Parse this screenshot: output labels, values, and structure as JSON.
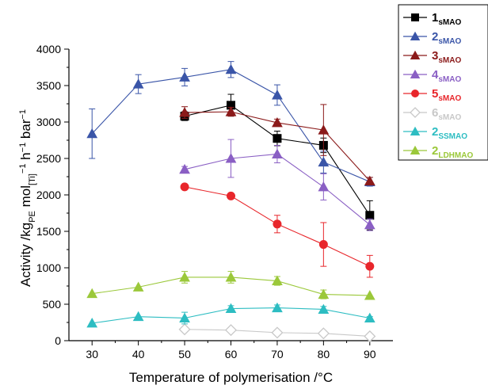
{
  "chart_data": {
    "type": "line",
    "xlabel": "Temperature of polymerisation /°C",
    "ylabel_parts": [
      {
        "t": "Activity /kg",
        "s": "n"
      },
      {
        "t": "PE",
        "s": "sub"
      },
      {
        "t": " mol",
        "s": "n"
      },
      {
        "t": "[Ti]",
        "s": "sub"
      },
      {
        "t": "−1",
        "s": "sup"
      },
      {
        "t": " h",
        "s": "n"
      },
      {
        "t": "−1",
        "s": "sup"
      },
      {
        "t": " bar",
        "s": "n"
      },
      {
        "t": "−1",
        "s": "sup"
      }
    ],
    "xlim": [
      25,
      95
    ],
    "ylim": [
      0,
      4000
    ],
    "xticks": [
      30,
      40,
      50,
      60,
      70,
      80,
      90
    ],
    "yticks": [
      0,
      500,
      1000,
      1500,
      2000,
      2500,
      3000,
      3500,
      4000
    ],
    "grid": false,
    "legend_position": "right",
    "series": [
      {
        "name": "1",
        "sub": "sMAO",
        "color": "#000000",
        "marker": "square",
        "x": [
          50,
          60,
          70,
          80,
          90
        ],
        "y": [
          3080,
          3230,
          2775,
          2680,
          1720
        ],
        "err": [
          60,
          150,
          100,
          100,
          200
        ]
      },
      {
        "name": "2",
        "sub": "sMAO",
        "color": "#3a55a8",
        "marker": "triangle",
        "x": [
          30,
          40,
          50,
          60,
          70,
          80,
          90
        ],
        "y": [
          2840,
          3520,
          3615,
          3720,
          3370,
          2450,
          2180
        ],
        "err": [
          340,
          130,
          120,
          110,
          140,
          150,
          60
        ]
      },
      {
        "name": "3",
        "sub": "sMAO",
        "color": "#8b1a1a",
        "marker": "triangle",
        "x": [
          50,
          60,
          70,
          80,
          90
        ],
        "y": [
          3130,
          3140,
          2990,
          2890,
          2190
        ],
        "err": [
          80,
          60,
          50,
          350,
          50
        ]
      },
      {
        "name": "4",
        "sub": "sMAO",
        "color": "#8a5fc4",
        "marker": "triangle",
        "x": [
          50,
          60,
          70,
          80,
          90
        ],
        "y": [
          2350,
          2500,
          2560,
          2110,
          1590
        ],
        "err": [
          40,
          260,
          120,
          180,
          80
        ]
      },
      {
        "name": "5",
        "sub": "sMAO",
        "color": "#e8262b",
        "marker": "circle",
        "x": [
          50,
          60,
          70,
          80,
          90
        ],
        "y": [
          2110,
          1985,
          1600,
          1320,
          1020
        ],
        "err": [
          0,
          0,
          120,
          300,
          150
        ]
      },
      {
        "name": "6",
        "sub": "sMAO",
        "color": "#c8c8c8",
        "marker": "diamond",
        "x": [
          50,
          60,
          70,
          80,
          90
        ],
        "y": [
          155,
          145,
          110,
          100,
          60
        ],
        "err": [
          30,
          20,
          20,
          20,
          10
        ]
      },
      {
        "name": "2",
        "sub": "SSMAO",
        "color": "#2dbdc2",
        "marker": "triangle",
        "x": [
          30,
          40,
          50,
          60,
          70,
          80,
          90
        ],
        "y": [
          240,
          330,
          310,
          440,
          450,
          430,
          310
        ],
        "err": [
          0,
          0,
          80,
          40,
          40,
          40,
          20
        ]
      },
      {
        "name": "2",
        "sub": "LDHMAO",
        "color": "#9bc83a",
        "marker": "triangle",
        "x": [
          30,
          40,
          50,
          60,
          70,
          80,
          90
        ],
        "y": [
          645,
          735,
          870,
          870,
          820,
          635,
          620
        ],
        "err": [
          0,
          0,
          80,
          80,
          60,
          60,
          0
        ]
      }
    ]
  }
}
